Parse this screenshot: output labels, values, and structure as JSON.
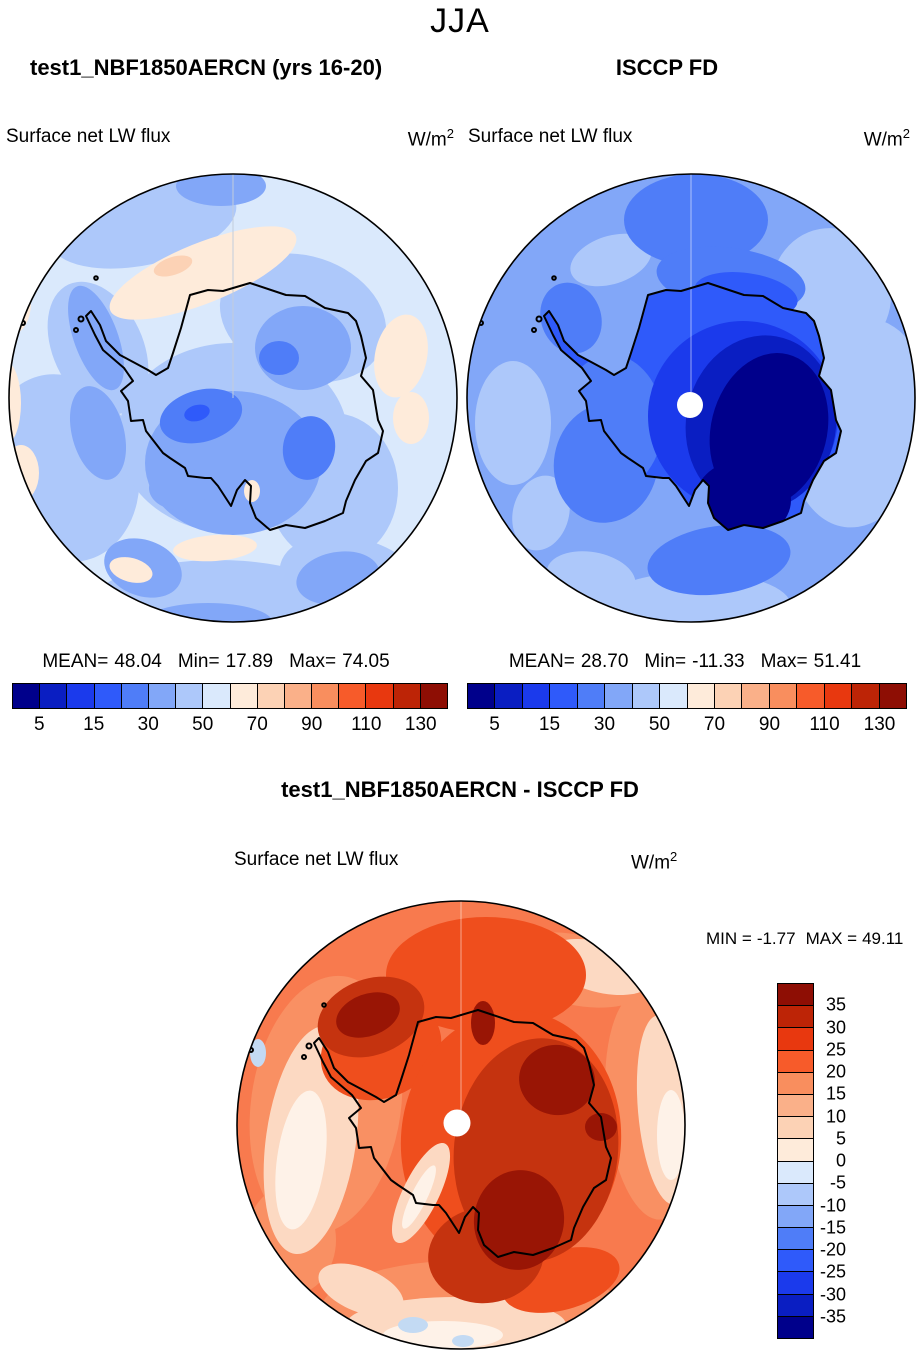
{
  "title": "JJA",
  "palette": [
    "#00008B",
    "#0A1EC2",
    "#1B3AEC",
    "#2F5AFA",
    "#4F7DF8",
    "#82A7F8",
    "#ADC8FA",
    "#DAE9FC",
    "#FEEBDA",
    "#FCD2B5",
    "#FAB089",
    "#F98E5E",
    "#F75B2A",
    "#E8380F",
    "#BD2406",
    "#8E0E04"
  ],
  "top_panels": [
    {
      "title": "test1_NBF1850AERCN (yrs 16-20)",
      "field": "Surface net LW flux",
      "units_base": "W/m",
      "units_exp": "2",
      "stats": {
        "mean_label": "MEAN=",
        "mean": "48.04",
        "min_label": "Min=",
        "min": "17.89",
        "max_label": "Max=",
        "max": "74.05"
      },
      "ticks": [
        "5",
        "15",
        "30",
        "50",
        "70",
        "90",
        "110",
        "130"
      ]
    },
    {
      "title": "ISCCP FD",
      "field": "Surface net LW flux",
      "units_base": "W/m",
      "units_exp": "2",
      "stats": {
        "mean_label": "MEAN=",
        "mean": "28.70",
        "min_label": "Min=",
        "min": "-11.33",
        "max_label": "Max=",
        "max": "51.41"
      },
      "ticks": [
        "5",
        "15",
        "30",
        "50",
        "70",
        "90",
        "110",
        "130"
      ]
    }
  ],
  "diff_panel": {
    "title": "test1_NBF1850AERCN - ISCCP FD",
    "field": "Surface net LW flux",
    "units_base": "W/m",
    "units_exp": "2",
    "stats": {
      "min_label": "MIN =",
      "min": "-1.77",
      "max_label": "MAX =",
      "max": "49.11"
    },
    "ticks": [
      "35",
      "30",
      "25",
      "20",
      "15",
      "10",
      "5",
      "0",
      "-5",
      "-10",
      "-15",
      "-20",
      "-25",
      "-30",
      "-35"
    ]
  },
  "chart_data": [
    {
      "type": "heatmap",
      "title": "test1_NBF1850AERCN (yrs 16-20)",
      "season": "JJA",
      "variable": "Surface net LW flux",
      "units": "W/m2",
      "mean": 48.04,
      "min": 17.89,
      "max": 74.05,
      "contour_levels": [
        5,
        10,
        15,
        20,
        30,
        40,
        50,
        60,
        70,
        80,
        90,
        100,
        110,
        120,
        130
      ],
      "labeled_levels": [
        5,
        15,
        30,
        50,
        70,
        90,
        110,
        130
      ],
      "legend_position": "bottom"
    },
    {
      "type": "heatmap",
      "title": "ISCCP FD",
      "season": "JJA",
      "variable": "Surface net LW flux",
      "units": "W/m2",
      "mean": 28.7,
      "min": -11.33,
      "max": 51.41,
      "contour_levels": [
        5,
        10,
        15,
        20,
        30,
        40,
        50,
        60,
        70,
        80,
        90,
        100,
        110,
        120,
        130
      ],
      "labeled_levels": [
        5,
        15,
        30,
        50,
        70,
        90,
        110,
        130
      ],
      "legend_position": "bottom"
    },
    {
      "type": "heatmap",
      "title": "test1_NBF1850AERCN - ISCCP FD",
      "season": "JJA",
      "variable": "Surface net LW flux",
      "units": "W/m2",
      "min": -1.77,
      "max": 49.11,
      "contour_levels": [
        -35,
        -30,
        -25,
        -20,
        -15,
        -10,
        -5,
        0,
        5,
        10,
        15,
        20,
        25,
        30,
        35
      ],
      "labeled_levels": [
        35,
        30,
        25,
        20,
        15,
        10,
        5,
        0,
        -5,
        -10,
        -15,
        -20,
        -25,
        -30,
        -35
      ],
      "legend_position": "right"
    }
  ]
}
